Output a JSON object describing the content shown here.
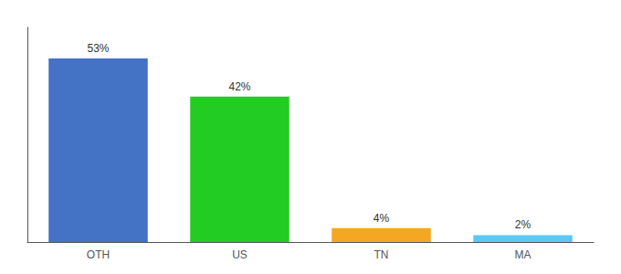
{
  "chart_data": {
    "type": "bar",
    "categories": [
      "OTH",
      "US",
      "TN",
      "MA"
    ],
    "values": [
      53,
      42,
      4,
      2
    ],
    "value_labels": [
      "53%",
      "42%",
      "4%",
      "2%"
    ],
    "colors": [
      "#4472c4",
      "#22cc22",
      "#f5a623",
      "#5bc8f5"
    ],
    "ylim": [
      0,
      62
    ],
    "grid": false,
    "data_labels": true,
    "tick_labels": "x"
  }
}
